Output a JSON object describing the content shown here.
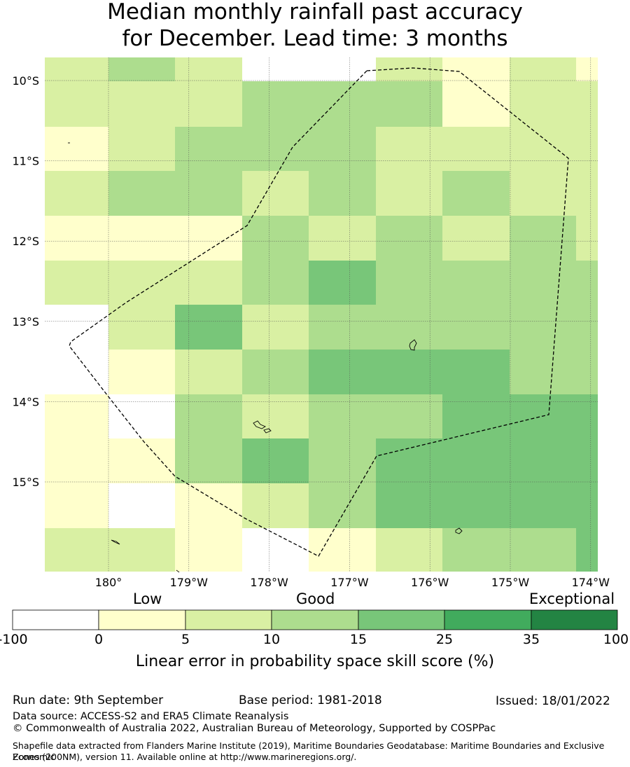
{
  "title_line1": "Median monthly rainfall past accuracy",
  "title_line2": "for December. Lead time: 3 months",
  "map": {
    "lon_range": [
      -181.0,
      -173.9
    ],
    "lat_range": [
      -16.0,
      -9.7
    ],
    "lat_ticks": [
      {
        "value": -10,
        "label": "10°S"
      },
      {
        "value": -11,
        "label": "11°S"
      },
      {
        "value": -12,
        "label": "12°S"
      },
      {
        "value": -13,
        "label": "13°S"
      },
      {
        "value": -14,
        "label": "14°S"
      },
      {
        "value": -15,
        "label": "15°S"
      }
    ],
    "lon_ticks": [
      {
        "value": -180,
        "label": "180°"
      },
      {
        "value": -179,
        "label": "179°W"
      },
      {
        "value": -178,
        "label": "178°W"
      },
      {
        "value": -177,
        "label": "177°W"
      },
      {
        "value": -176,
        "label": "176°W"
      },
      {
        "value": -175,
        "label": "175°W"
      },
      {
        "value": -174,
        "label": "174°W"
      }
    ],
    "grid_note": "Skill score category per cell; rows north to south, columns west to east",
    "cell_values": [
      [
        2,
        3,
        2,
        0,
        0,
        2,
        1,
        2,
        1
      ],
      [
        2,
        2,
        2,
        3,
        3,
        3,
        1,
        2,
        2
      ],
      [
        1,
        2,
        3,
        3,
        3,
        2,
        2,
        2,
        2
      ],
      [
        2,
        3,
        3,
        2,
        3,
        2,
        3,
        2,
        2
      ],
      [
        1,
        1,
        1,
        3,
        2,
        3,
        2,
        3,
        2
      ],
      [
        2,
        2,
        2,
        3,
        4,
        3,
        3,
        3,
        3
      ],
      [
        0,
        2,
        4,
        2,
        3,
        3,
        3,
        3,
        3
      ],
      [
        0,
        1,
        2,
        3,
        4,
        4,
        4,
        3,
        3
      ],
      [
        1,
        0,
        3,
        2,
        3,
        3,
        4,
        4,
        4
      ],
      [
        1,
        1,
        3,
        4,
        3,
        4,
        4,
        4,
        4
      ],
      [
        1,
        0,
        1,
        2,
        3,
        4,
        4,
        4,
        4
      ],
      [
        2,
        2,
        1,
        0,
        1,
        2,
        3,
        3,
        4
      ]
    ]
  },
  "colorbar": {
    "tier_low": "Low",
    "tier_good": "Good",
    "tier_exceptional": "Exceptional",
    "ticks": [
      "-100",
      "0",
      "5",
      "10",
      "15",
      "25",
      "35",
      "100"
    ],
    "colors": [
      "#ffffff",
      "#ffffcc",
      "#d9f0a3",
      "#addd8e",
      "#78c679",
      "#41ab5d",
      "#238443"
    ],
    "title": "Linear error in probability space skill score (%)"
  },
  "footer": {
    "run_date": "Run date: 9th September",
    "base_period": "Base period: 1981-2018",
    "issued": "Issued: 18/01/2022",
    "data_source": "Data source: ACCESS-S2 and ERA5 Climate Reanalysis",
    "copyright": "© Commonwealth of Australia 2022, Australian Bureau of Meteorology, Supported by COSPPac",
    "shapefile_line1": "Shapefile data extracted from Flanders Marine Institute (2019), Maritime Boundaries Geodatabase: Maritime Boundaries and Exclusive Economic",
    "shapefile_line2": "Zones (200NM), version 11. Available online at http://www.marineregions.org/."
  }
}
